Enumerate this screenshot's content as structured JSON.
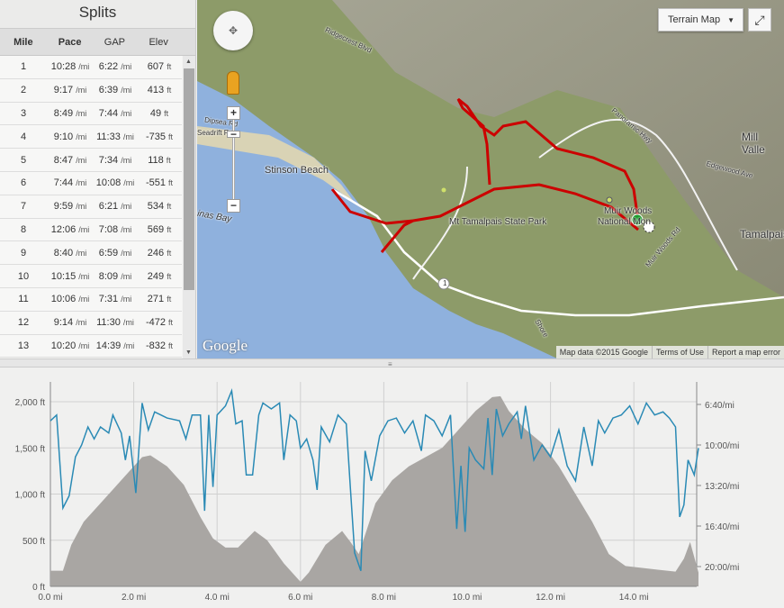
{
  "splits": {
    "title": "Splits",
    "columns": [
      "Mile",
      "Pace",
      "GAP",
      "Elev"
    ],
    "rows": [
      {
        "mile": "1",
        "pace": "10:28",
        "gap": "6:22",
        "elev": "607"
      },
      {
        "mile": "2",
        "pace": "9:17",
        "gap": "6:39",
        "elev": "413"
      },
      {
        "mile": "3",
        "pace": "8:49",
        "gap": "7:44",
        "elev": "49"
      },
      {
        "mile": "4",
        "pace": "9:10",
        "gap": "11:33",
        "elev": "-735"
      },
      {
        "mile": "5",
        "pace": "8:47",
        "gap": "7:34",
        "elev": "118"
      },
      {
        "mile": "6",
        "pace": "7:44",
        "gap": "10:08",
        "elev": "-551"
      },
      {
        "mile": "7",
        "pace": "9:59",
        "gap": "6:21",
        "elev": "534"
      },
      {
        "mile": "8",
        "pace": "12:06",
        "gap": "7:08",
        "elev": "569"
      },
      {
        "mile": "9",
        "pace": "8:40",
        "gap": "6:59",
        "elev": "246"
      },
      {
        "mile": "10",
        "pace": "10:15",
        "gap": "8:09",
        "elev": "249"
      },
      {
        "mile": "11",
        "pace": "10:06",
        "gap": "7:31",
        "elev": "271"
      },
      {
        "mile": "12",
        "pace": "9:14",
        "gap": "11:30",
        "elev": "-472"
      },
      {
        "mile": "13",
        "pace": "10:20",
        "gap": "14:39",
        "elev": "-832"
      }
    ],
    "pace_unit": "/mi",
    "elev_unit": "ft"
  },
  "map": {
    "type_selector": "Terrain Map",
    "labels": {
      "stinson": "Stinson Beach",
      "tam": "Mt Tamalpais State Park",
      "muir1": "Muir Woods",
      "muir2": "National Mon",
      "mill": "Mill Valle",
      "tamalpais": "Tamalpais",
      "bay": "inas Bay",
      "dipsea": "Dipsea Rd",
      "seadrift": "Seadrift Rd",
      "ridgecrest": "Ridgecrest Blvd",
      "panoramic": "Panoramic Hwy",
      "edgewood": "Edgewood Ave",
      "muirwoodsrd": "Muir Woods Rd",
      "shore": "Shore",
      "route1": "1"
    },
    "attribution": {
      "data": "Map data ©2015 Google",
      "terms": "Terms of Use",
      "report": "Report a map error"
    },
    "logo": "Google",
    "route_color": "#cc0000"
  },
  "chart_data": {
    "type": "area+line",
    "x_unit": "mi",
    "x_ticks": [
      "0.0 mi",
      "2.0 mi",
      "4.0 mi",
      "6.0 mi",
      "8.0 mi",
      "10.0 mi",
      "12.0 mi",
      "14.0 mi"
    ],
    "x_range": [
      0,
      15.55
    ],
    "y_left_ticks": [
      "0 ft",
      "500 ft",
      "1,000 ft",
      "1,500 ft",
      "2,000 ft"
    ],
    "y_left_range": [
      0,
      2200
    ],
    "y_right_ticks": [
      "6:40/mi",
      "10:00/mi",
      "13:20/mi",
      "16:40/mi",
      "20:00/mi"
    ],
    "grid": true,
    "colors": {
      "elevation": "#a9a6a3",
      "pace": "#2a8ab5"
    },
    "elevation": [
      [
        0,
        170
      ],
      [
        0.3,
        170
      ],
      [
        0.5,
        450
      ],
      [
        0.8,
        700
      ],
      [
        1.2,
        900
      ],
      [
        1.6,
        1100
      ],
      [
        2.0,
        1300
      ],
      [
        2.2,
        1400
      ],
      [
        2.4,
        1420
      ],
      [
        2.8,
        1300
      ],
      [
        3.2,
        1100
      ],
      [
        3.6,
        750
      ],
      [
        3.9,
        520
      ],
      [
        4.2,
        420
      ],
      [
        4.5,
        420
      ],
      [
        4.9,
        600
      ],
      [
        5.2,
        500
      ],
      [
        5.6,
        250
      ],
      [
        6.0,
        50
      ],
      [
        6.2,
        150
      ],
      [
        6.6,
        450
      ],
      [
        7.0,
        600
      ],
      [
        7.2,
        480
      ],
      [
        7.4,
        350
      ],
      [
        7.8,
        900
      ],
      [
        8.2,
        1150
      ],
      [
        8.6,
        1300
      ],
      [
        9.0,
        1400
      ],
      [
        9.4,
        1500
      ],
      [
        9.8,
        1700
      ],
      [
        10.2,
        1900
      ],
      [
        10.6,
        2050
      ],
      [
        10.8,
        2060
      ],
      [
        11.0,
        1900
      ],
      [
        11.4,
        1700
      ],
      [
        11.8,
        1550
      ],
      [
        12.2,
        1300
      ],
      [
        12.6,
        1000
      ],
      [
        13.0,
        700
      ],
      [
        13.4,
        350
      ],
      [
        13.8,
        220
      ],
      [
        14.2,
        200
      ],
      [
        14.6,
        180
      ],
      [
        15.0,
        160
      ],
      [
        15.2,
        300
      ],
      [
        15.35,
        480
      ],
      [
        15.55,
        150
      ]
    ],
    "pace": [
      [
        0,
        "8:01"
      ],
      [
        0.15,
        "7:32"
      ],
      [
        0.3,
        "15:11"
      ],
      [
        0.45,
        "14:11"
      ],
      [
        0.6,
        "10:59"
      ],
      [
        0.75,
        "10:00"
      ],
      [
        0.9,
        "8:31"
      ],
      [
        1.05,
        "9:30"
      ],
      [
        1.2,
        "8:31"
      ],
      [
        1.4,
        "9:01"
      ],
      [
        1.5,
        "7:32"
      ],
      [
        1.7,
        "9:01"
      ],
      [
        1.8,
        "11:14"
      ],
      [
        1.9,
        "9:15"
      ],
      [
        2.05,
        "13:57"
      ],
      [
        2.2,
        "6:33"
      ],
      [
        2.35,
        "8:46"
      ],
      [
        2.5,
        "7:17"
      ],
      [
        2.8,
        "7:47"
      ],
      [
        3.1,
        "8:01"
      ],
      [
        3.25,
        "9:30"
      ],
      [
        3.4,
        "7:32"
      ],
      [
        3.6,
        "7:32"
      ],
      [
        3.7,
        "15:25"
      ],
      [
        3.8,
        "7:32"
      ],
      [
        3.9,
        "13:27"
      ],
      [
        4.0,
        "7:32"
      ],
      [
        4.2,
        "6:47"
      ],
      [
        4.35,
        "5:33"
      ],
      [
        4.45,
        "8:16"
      ],
      [
        4.6,
        "8:01"
      ],
      [
        4.7,
        "12:28"
      ],
      [
        4.85,
        "12:28"
      ],
      [
        5.0,
        "7:32"
      ],
      [
        5.1,
        "6:33"
      ],
      [
        5.3,
        "7:02"
      ],
      [
        5.5,
        "6:33"
      ],
      [
        5.6,
        "11:14"
      ],
      [
        5.75,
        "7:32"
      ],
      [
        5.9,
        "8:01"
      ],
      [
        6.0,
        "10:15"
      ],
      [
        6.15,
        "9:30"
      ],
      [
        6.3,
        "11:14"
      ],
      [
        6.4,
        "13:42"
      ],
      [
        6.5,
        "8:31"
      ],
      [
        6.7,
        "9:45"
      ],
      [
        6.9,
        "7:32"
      ],
      [
        7.1,
        "8:16"
      ],
      [
        7.2,
        "13:42"
      ],
      [
        7.3,
        "18:53"
      ],
      [
        7.45,
        "20:21"
      ],
      [
        7.55,
        "10:29"
      ],
      [
        7.7,
        "12:57"
      ],
      [
        7.9,
        "9:15"
      ],
      [
        8.1,
        "8:01"
      ],
      [
        8.3,
        "7:47"
      ],
      [
        8.5,
        "9:01"
      ],
      [
        8.7,
        "8:01"
      ],
      [
        8.9,
        "10:29"
      ],
      [
        9.0,
        "7:32"
      ],
      [
        9.2,
        "8:01"
      ],
      [
        9.4,
        "9:15"
      ],
      [
        9.6,
        "7:32"
      ],
      [
        9.75,
        "16:54"
      ],
      [
        9.85,
        "11:43"
      ],
      [
        9.95,
        "17:09"
      ],
      [
        10.05,
        "10:15"
      ],
      [
        10.2,
        "11:14"
      ],
      [
        10.4,
        "11:58"
      ],
      [
        10.5,
        "7:47"
      ],
      [
        10.6,
        "12:28"
      ],
      [
        10.7,
        "7:02"
      ],
      [
        10.85,
        "9:15"
      ],
      [
        11.0,
        "8:16"
      ],
      [
        11.2,
        "7:17"
      ],
      [
        11.3,
        "9:30"
      ],
      [
        11.4,
        "6:47"
      ],
      [
        11.6,
        "11:14"
      ],
      [
        11.8,
        "10:00"
      ],
      [
        12.0,
        "10:59"
      ],
      [
        12.2,
        "8:46"
      ],
      [
        12.4,
        "11:43"
      ],
      [
        12.6,
        "12:57"
      ],
      [
        12.8,
        "8:31"
      ],
      [
        13.0,
        "11:43"
      ],
      [
        13.15,
        "8:01"
      ],
      [
        13.3,
        "9:01"
      ],
      [
        13.5,
        "7:47"
      ],
      [
        13.7,
        "7:32"
      ],
      [
        13.9,
        "6:47"
      ],
      [
        14.1,
        "8:16"
      ],
      [
        14.3,
        "6:33"
      ],
      [
        14.5,
        "7:32"
      ],
      [
        14.7,
        "7:17"
      ],
      [
        14.85,
        "7:47"
      ],
      [
        15.0,
        "8:31"
      ],
      [
        15.1,
        "15:55"
      ],
      [
        15.2,
        "14:56"
      ],
      [
        15.3,
        "11:14"
      ],
      [
        15.45,
        "12:28"
      ],
      [
        15.55,
        "10:15"
      ]
    ]
  }
}
